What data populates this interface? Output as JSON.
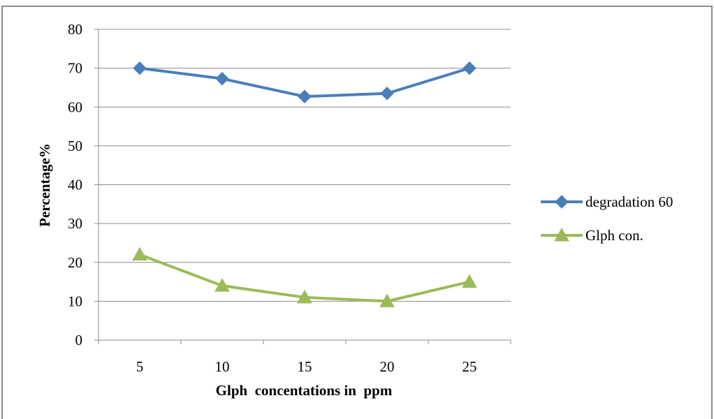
{
  "chart_data": {
    "type": "line",
    "title": "",
    "xlabel": "Glph  concentations in  ppm",
    "ylabel": "Percentage%",
    "categories": [
      "5",
      "10",
      "15",
      "20",
      "25"
    ],
    "ylim": [
      0,
      80
    ],
    "yticks": [
      "0",
      "10",
      "20",
      "30",
      "40",
      "50",
      "60",
      "70",
      "80"
    ],
    "grid": true,
    "legend_position": "right",
    "series": [
      {
        "name": "degradation 60",
        "values": [
          70,
          67.3,
          62.7,
          63.5,
          70
        ],
        "color": "#4a7ebb",
        "marker": "diamond"
      },
      {
        "name": "Glph con.",
        "values": [
          22,
          14,
          11,
          10,
          15
        ],
        "color": "#9bbb59",
        "marker": "triangle"
      }
    ]
  }
}
